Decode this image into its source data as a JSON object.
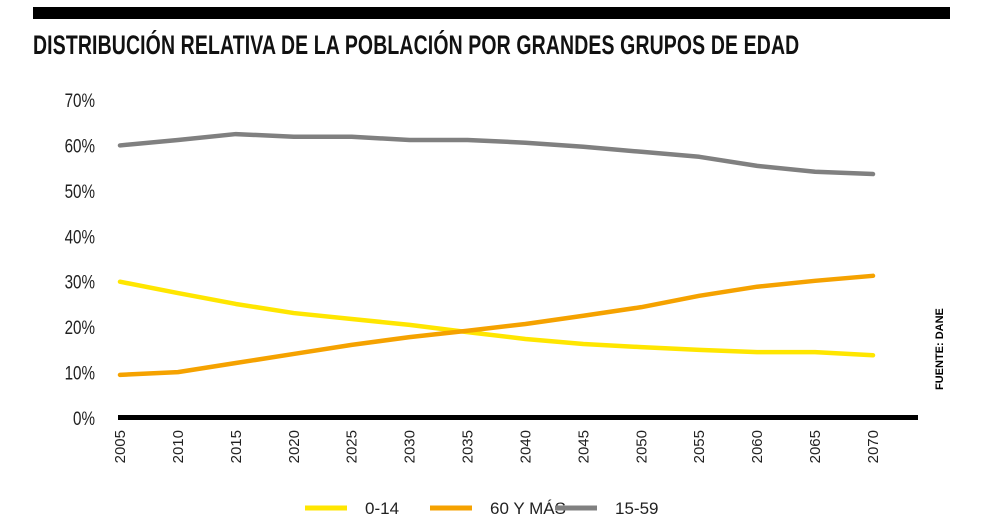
{
  "chart_data": {
    "type": "line",
    "title": "DISTRIBUCIÓN RELATIVA DE LA POBLACIÓN POR GRANDES GRUPOS DE EDAD",
    "source": "FUENTE: DANE",
    "xlabel": "",
    "ylabel": "",
    "x": [
      2005,
      2010,
      2015,
      2020,
      2025,
      2030,
      2035,
      2040,
      2045,
      2050,
      2055,
      2060,
      2065,
      2070
    ],
    "ylim": [
      0,
      70
    ],
    "yticks": [
      "0%",
      "10%",
      "20%",
      "30%",
      "40%",
      "50%",
      "60%",
      "70%"
    ],
    "grid": false,
    "legend": "bottom",
    "series": [
      {
        "name": "0-14",
        "color": "#FFE600",
        "values": [
          30.0,
          27.5,
          25.1,
          23.1,
          21.8,
          20.5,
          18.9,
          17.4,
          16.3,
          15.6,
          15.0,
          14.5,
          14.5,
          13.8
        ]
      },
      {
        "name": "60 Y MÁS",
        "color": "#F5A200",
        "values": [
          9.5,
          10.1,
          12.1,
          14.1,
          16.1,
          17.8,
          19.2,
          20.7,
          22.5,
          24.4,
          26.9,
          28.9,
          30.2,
          31.3
        ]
      },
      {
        "name": "15-59",
        "color": "#808080",
        "values": [
          60.0,
          61.2,
          62.5,
          61.9,
          61.9,
          61.2,
          61.2,
          60.6,
          59.7,
          58.6,
          57.5,
          55.5,
          54.2,
          53.7
        ]
      }
    ]
  }
}
